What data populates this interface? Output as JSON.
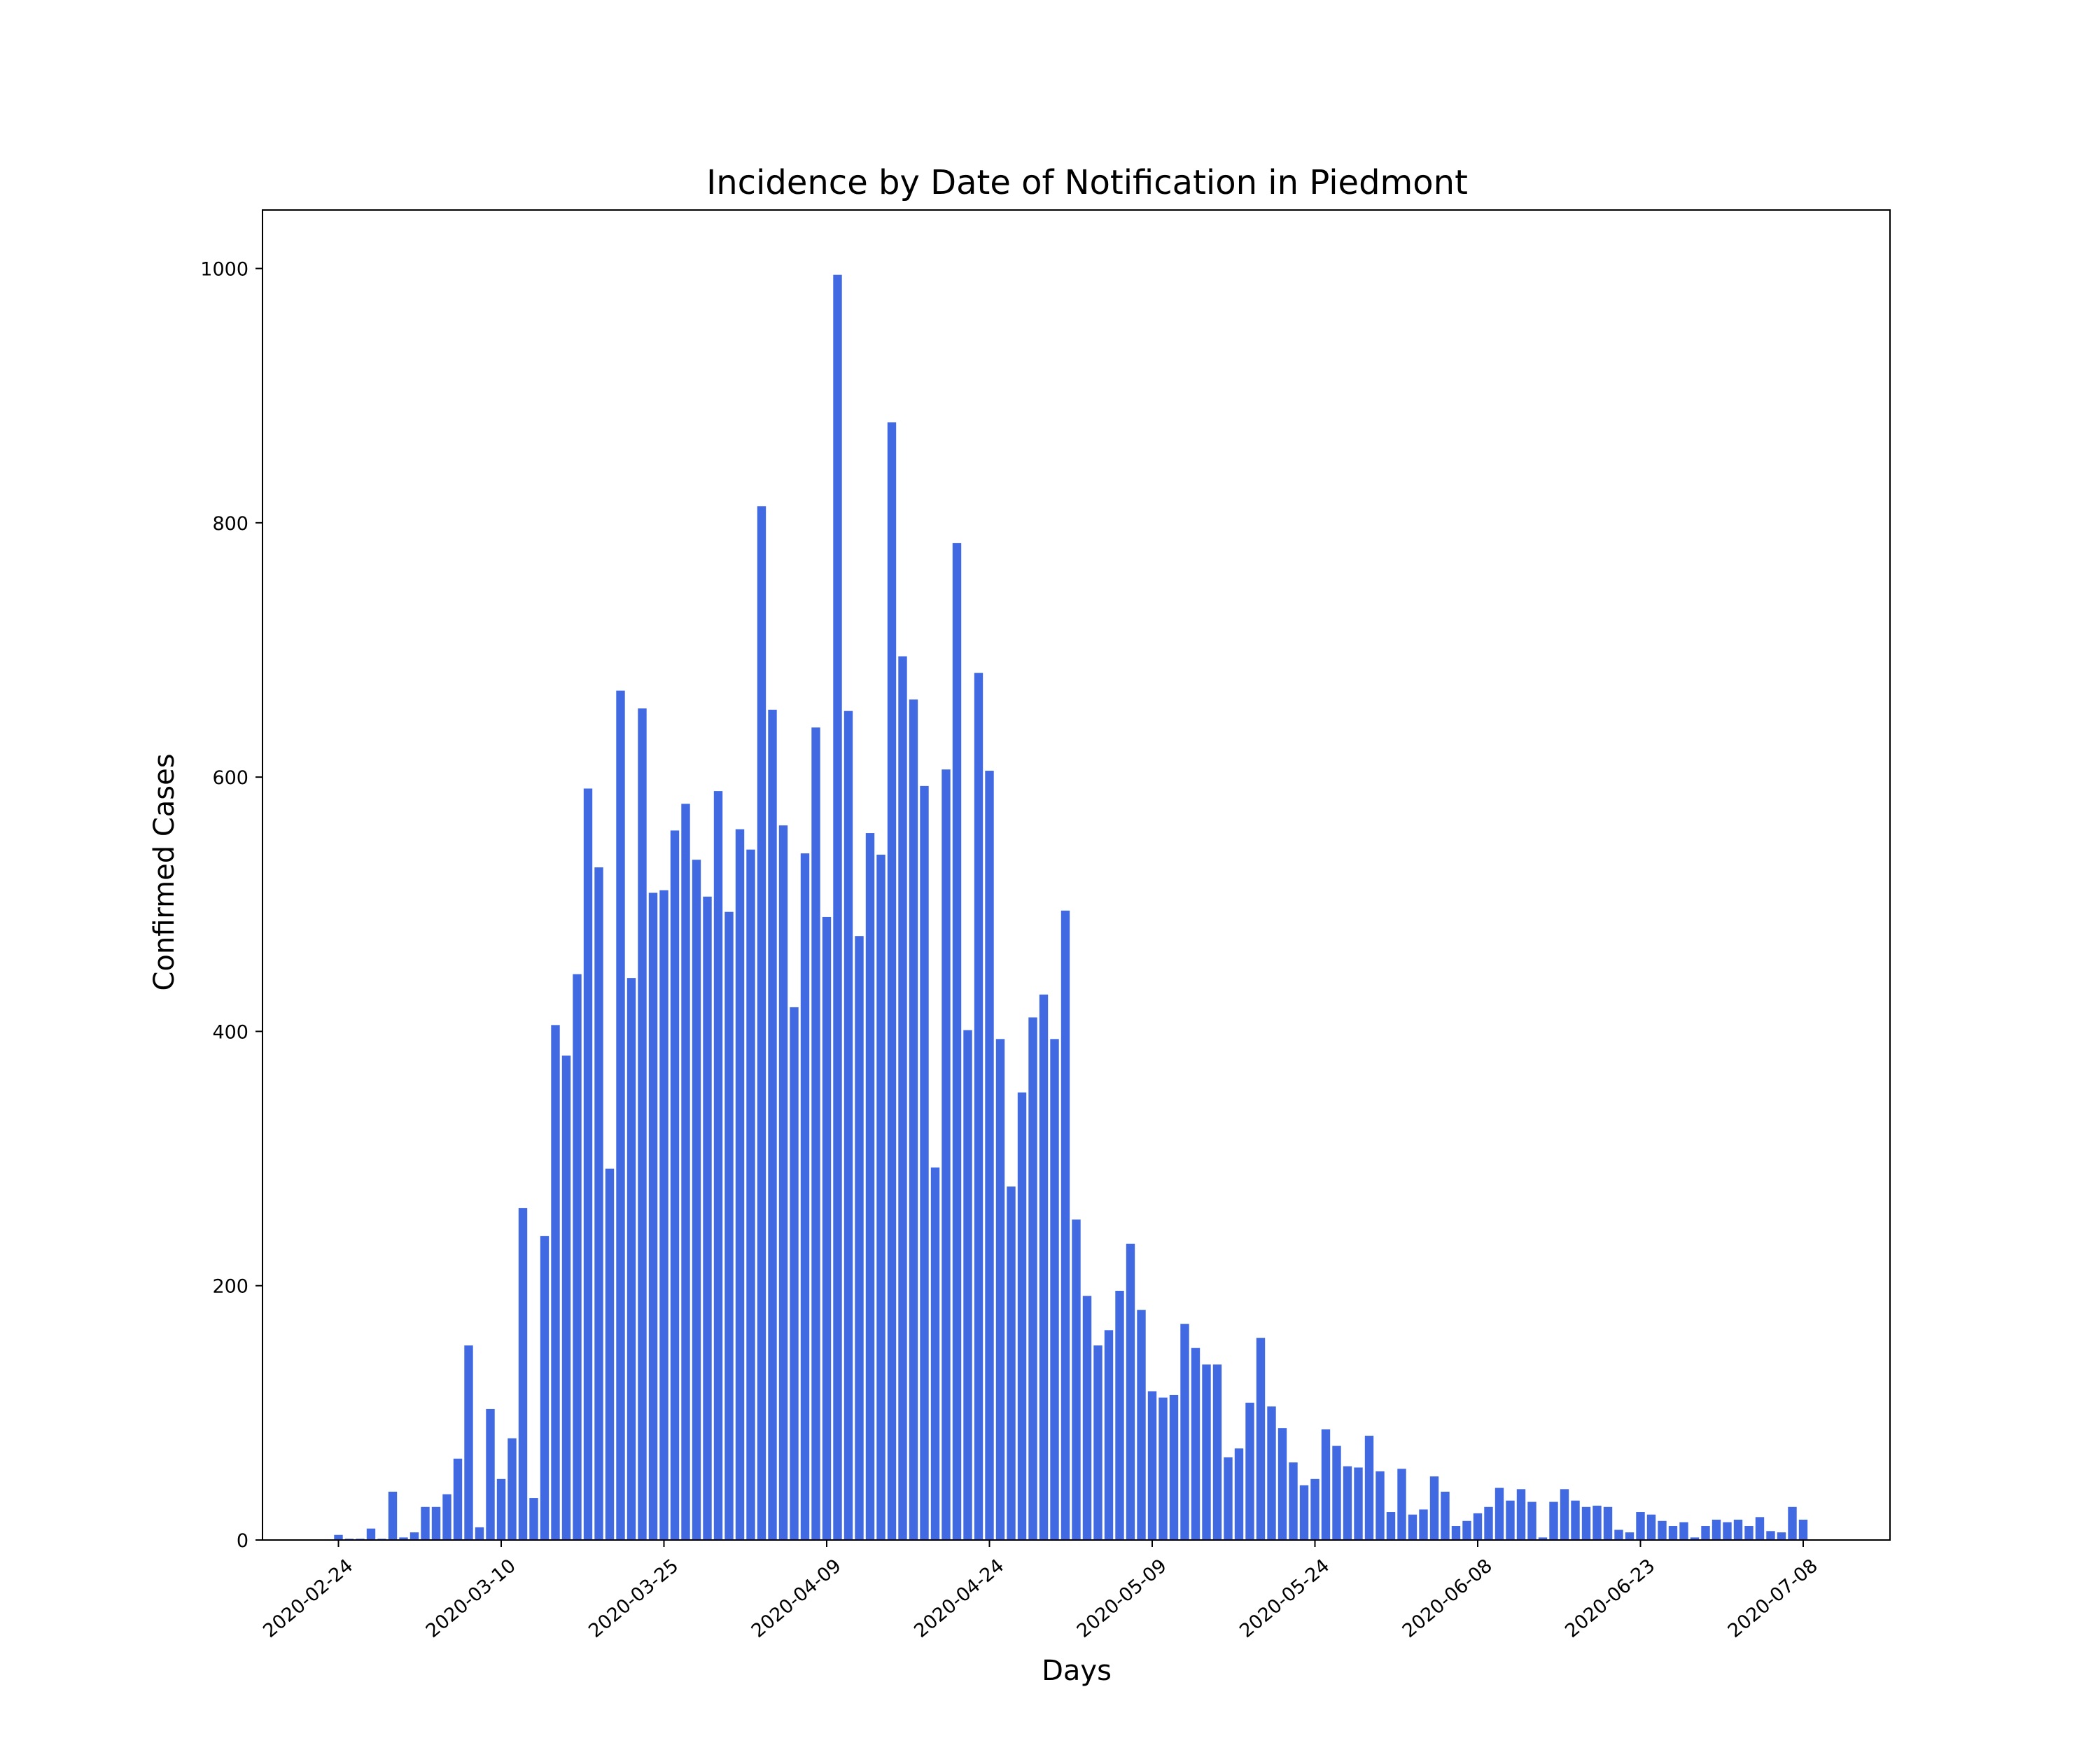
{
  "chart_data": {
    "type": "bar",
    "title": "Incidence by Date of Notification in Piedmont",
    "xlabel": "Days",
    "ylabel": "Confirmed Cases",
    "start_date": "2020-02-24",
    "x_ticks": [
      "2020-02-24",
      "2020-03-10",
      "2020-03-25",
      "2020-04-09",
      "2020-04-24",
      "2020-05-09",
      "2020-05-24",
      "2020-06-08",
      "2020-06-23",
      "2020-07-08"
    ],
    "y_ticks": [
      0,
      200,
      400,
      600,
      800,
      1000
    ],
    "ylim": [
      0,
      1046
    ],
    "xlim": [
      "2020-02-17",
      "2020-07-16"
    ],
    "bar_color": "#4169e1",
    "grid": false,
    "legend": "none",
    "values": [
      4,
      1,
      1,
      9,
      1,
      38,
      2,
      6,
      26,
      26,
      36,
      64,
      153,
      10,
      103,
      48,
      80,
      261,
      33,
      239,
      405,
      381,
      445,
      591,
      529,
      292,
      668,
      442,
      654,
      509,
      511,
      558,
      579,
      535,
      506,
      589,
      494,
      559,
      543,
      813,
      653,
      562,
      419,
      540,
      639,
      490,
      995,
      652,
      475,
      556,
      539,
      879,
      695,
      661,
      593,
      293,
      606,
      784,
      401,
      682,
      605,
      394,
      278,
      352,
      411,
      429,
      394,
      495,
      252,
      192,
      153,
      165,
      196,
      233,
      181,
      117,
      112,
      114,
      170,
      151,
      138,
      138,
      65,
      72,
      108,
      159,
      105,
      88,
      61,
      43,
      48,
      87,
      74,
      58,
      57,
      82,
      54,
      22,
      56,
      20,
      24,
      50,
      38,
      11,
      15,
      21,
      26,
      41,
      31,
      40,
      30,
      2,
      30,
      40,
      31,
      26,
      27,
      26,
      8,
      6,
      22,
      20,
      15,
      11,
      14,
      2,
      11,
      16,
      14,
      16,
      11,
      18,
      7,
      6,
      26,
      16
    ]
  }
}
